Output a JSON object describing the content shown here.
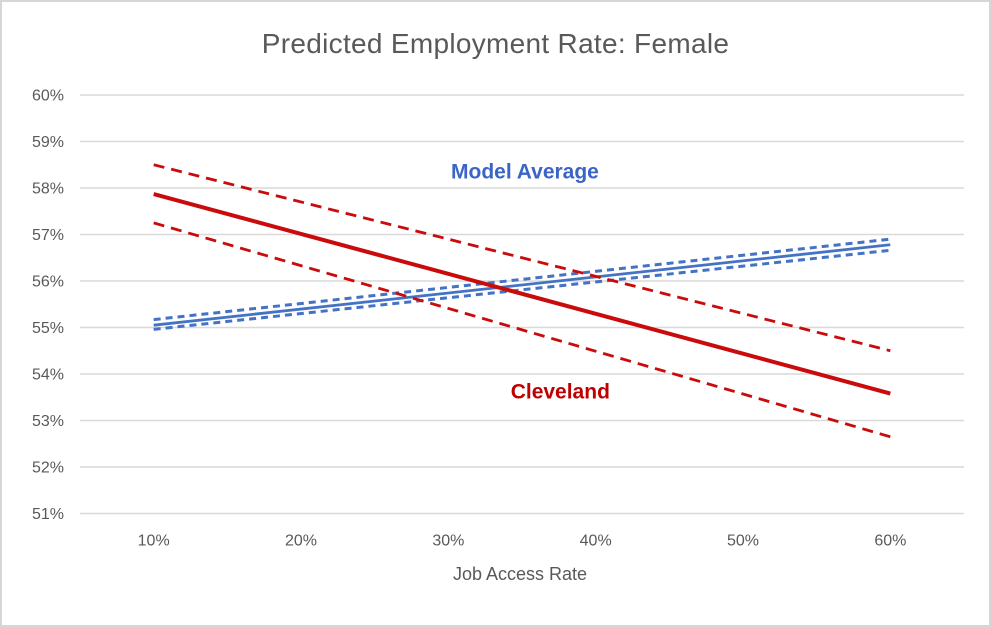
{
  "window": {
    "background": "#ffffff",
    "border_color": "#d6d6d6"
  },
  "chart_data": {
    "type": "line",
    "title": "Predicted Employment Rate: Female",
    "xlabel": "Job Access Rate",
    "ylabel": "",
    "grid": true,
    "legend": "inline-labels",
    "gridline_color": "#d9d9d9",
    "axis_text_color": "#595959",
    "xlim": [
      5,
      65
    ],
    "ylim": [
      51,
      60
    ],
    "x_ticks": [
      {
        "label": "10%",
        "value": 10
      },
      {
        "label": "20%",
        "value": 20
      },
      {
        "label": "30%",
        "value": 30
      },
      {
        "label": "40%",
        "value": 40
      },
      {
        "label": "50%",
        "value": 50
      },
      {
        "label": "60%",
        "value": 60
      }
    ],
    "y_ticks": [
      {
        "label": "60%",
        "value": 60
      },
      {
        "label": "59%",
        "value": 59
      },
      {
        "label": "58%",
        "value": 58
      },
      {
        "label": "57%",
        "value": 57
      },
      {
        "label": "56%",
        "value": 56
      },
      {
        "label": "55%",
        "value": 55
      },
      {
        "label": "54%",
        "value": 54
      },
      {
        "label": "53%",
        "value": 53
      },
      {
        "label": "52%",
        "value": 52
      },
      {
        "label": "51%",
        "value": 51
      }
    ],
    "series": [
      {
        "name": "Model Average",
        "role": "mean",
        "color": "#4472c4",
        "style": "solid",
        "width": 2.8,
        "dash": "",
        "x": [
          10,
          60
        ],
        "values": [
          55.05,
          56.78
        ]
      },
      {
        "name": "Model Average upper bound",
        "role": "ci-upper",
        "color": "#4472c4",
        "style": "dashed",
        "width": 3,
        "dash": "7,5",
        "x": [
          10,
          60
        ],
        "values": [
          55.17,
          56.9
        ]
      },
      {
        "name": "Model Average lower bound",
        "role": "ci-lower",
        "color": "#4472c4",
        "style": "dashed",
        "width": 3,
        "dash": "7,5",
        "x": [
          10,
          60
        ],
        "values": [
          54.96,
          56.66
        ]
      },
      {
        "name": "Cleveland",
        "role": "mean",
        "color": "#c90b0b",
        "style": "solid",
        "width": 4,
        "dash": "",
        "x": [
          10,
          60
        ],
        "values": [
          57.87,
          53.58
        ]
      },
      {
        "name": "Cleveland upper bound",
        "role": "ci-upper",
        "color": "#c90b0b",
        "style": "dashed",
        "width": 2.8,
        "dash": "11,7",
        "x": [
          10,
          60
        ],
        "values": [
          58.5,
          54.5
        ]
      },
      {
        "name": "Cleveland lower bound",
        "role": "ci-lower",
        "color": "#c90b0b",
        "style": "dashed",
        "width": 2.8,
        "dash": "11,7",
        "x": [
          10,
          60
        ],
        "values": [
          57.25,
          52.65
        ]
      }
    ],
    "annotations": [
      {
        "text": "Model Average",
        "color": "#3a64c8",
        "x": 35.2,
        "y": 58.35,
        "bold": true
      },
      {
        "text": "Cleveland",
        "color": "#c00000",
        "x": 37.6,
        "y": 53.62,
        "bold": true
      }
    ]
  }
}
